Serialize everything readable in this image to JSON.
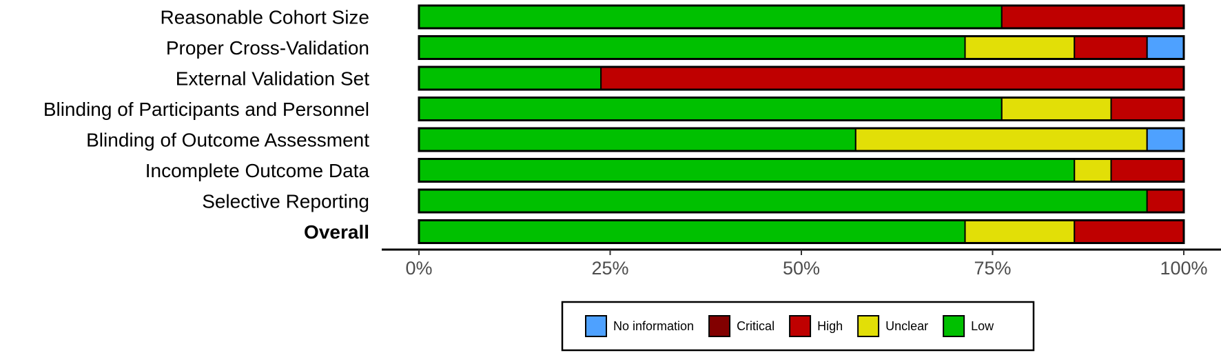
{
  "chart_data": {
    "type": "bar",
    "orientation": "horizontal",
    "stacked": true,
    "categories": [
      "Reasonable Cohort Size",
      "Proper Cross-Validation",
      "External Validation Set",
      "Blinding of Participants and Personnel",
      "Blinding of Outcome Assessment",
      "Incomplete Outcome Data",
      "Selective Reporting",
      "Overall"
    ],
    "bold_categories": [
      "Overall"
    ],
    "series": [
      {
        "name": "Low",
        "color": "#00C000",
        "values": [
          76.2,
          71.4,
          23.8,
          76.2,
          57.1,
          85.7,
          95.2,
          71.4
        ]
      },
      {
        "name": "Unclear",
        "color": "#E2DF07",
        "values": [
          0,
          14.3,
          0,
          14.3,
          38.1,
          4.8,
          0,
          14.3
        ]
      },
      {
        "name": "High",
        "color": "#BF0000",
        "values": [
          23.8,
          9.5,
          76.2,
          9.5,
          0,
          9.5,
          4.8,
          14.3
        ]
      },
      {
        "name": "Critical",
        "color": "#820000",
        "values": [
          0,
          0,
          0,
          0,
          0,
          0,
          0,
          0
        ]
      },
      {
        "name": "No information",
        "color": "#4EA1FF",
        "values": [
          0,
          4.8,
          0,
          0,
          4.8,
          0,
          0,
          0
        ]
      }
    ],
    "xlim": [
      0,
      100
    ],
    "xticks": [
      0,
      25,
      50,
      75,
      100
    ],
    "xtick_labels": [
      "0%",
      "25%",
      "50%",
      "75%",
      "100%"
    ],
    "legend": {
      "placement": "bottom",
      "entries": [
        "No information",
        "Critical",
        "High",
        "Unclear",
        "Low"
      ]
    },
    "title": "",
    "xlabel": "",
    "ylabel": ""
  }
}
